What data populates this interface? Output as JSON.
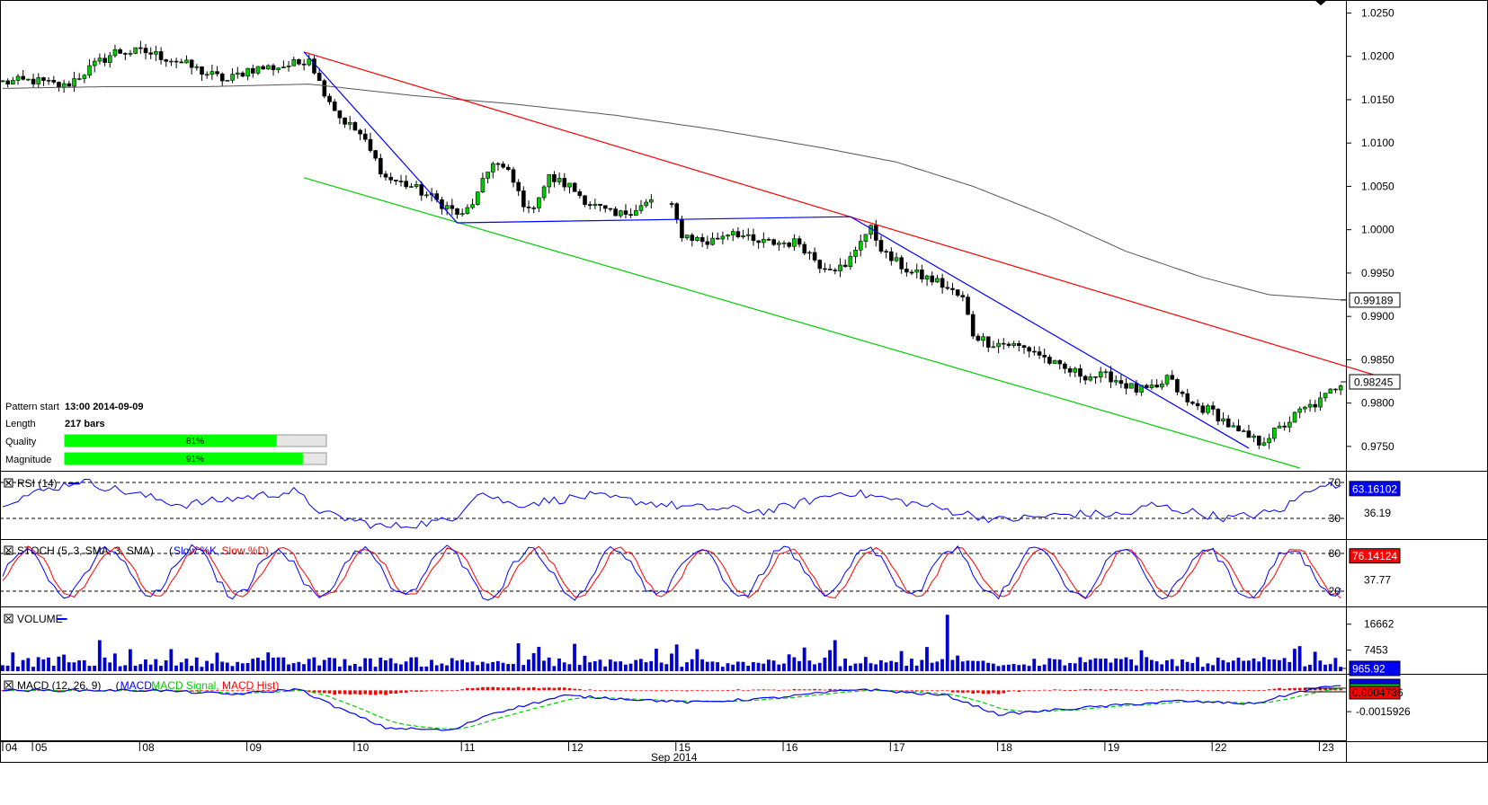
{
  "chart_data": {
    "type": "candlestick",
    "instrument_note": "",
    "x_ticks": [
      {
        "label": "04",
        "bar": 0
      },
      {
        "label": "05",
        "bar": 6
      },
      {
        "label": "08",
        "bar": 27
      },
      {
        "label": "09",
        "bar": 48
      },
      {
        "label": "10",
        "bar": 69
      },
      {
        "label": "11",
        "bar": 90
      },
      {
        "label": "12",
        "bar": 111
      },
      {
        "label": "15",
        "bar": 132
      },
      {
        "label": "16",
        "bar": 153
      },
      {
        "label": "17",
        "bar": 174
      },
      {
        "label": "18",
        "bar": 195
      },
      {
        "label": "19",
        "bar": 216
      },
      {
        "label": "22",
        "bar": 237
      },
      {
        "label": "23",
        "bar": 258
      }
    ],
    "x_label": "Sep 2014",
    "price_panel": {
      "y_ticks": [
        "1.0250",
        "1.0200",
        "1.0150",
        "1.0100",
        "1.0050",
        "1.0000",
        "0.9950",
        "0.9900",
        "0.9850",
        "0.9800",
        "0.9750"
      ],
      "ylim": [
        0.9725,
        1.0265
      ],
      "anchors": [
        [
          0,
          1.017
        ],
        [
          6,
          1.0172
        ],
        [
          12,
          1.0165
        ],
        [
          18,
          1.019
        ],
        [
          22,
          1.0205
        ],
        [
          28,
          1.0205
        ],
        [
          34,
          1.0195
        ],
        [
          40,
          1.018
        ],
        [
          44,
          1.0172
        ],
        [
          48,
          1.0185
        ],
        [
          54,
          1.0188
        ],
        [
          58,
          1.0192
        ],
        [
          60,
          1.02
        ],
        [
          62,
          1.017
        ],
        [
          66,
          1.013
        ],
        [
          70,
          1.011
        ],
        [
          75,
          1.006
        ],
        [
          80,
          1.005
        ],
        [
          86,
          1.003
        ],
        [
          90,
          1.0015
        ],
        [
          93,
          1.004
        ],
        [
          96,
          1.008
        ],
        [
          99,
          1.0065
        ],
        [
          103,
          1.002
        ],
        [
          107,
          1.006
        ],
        [
          111,
          1.005
        ],
        [
          115,
          1.003
        ],
        [
          120,
          1.0015
        ],
        [
          124,
          1.0025
        ],
        [
          128,
          1.0035
        ],
        [
          131,
          1.0025
        ],
        [
          133,
          0.9995
        ],
        [
          138,
          0.9985
        ],
        [
          143,
          1.0
        ],
        [
          147,
          0.9985
        ],
        [
          152,
          0.9985
        ],
        [
          156,
          0.9985
        ],
        [
          160,
          0.996
        ],
        [
          165,
          0.9955
        ],
        [
          168,
          0.999
        ],
        [
          170,
          1.0
        ],
        [
          173,
          0.997
        ],
        [
          178,
          0.995
        ],
        [
          183,
          0.994
        ],
        [
          188,
          0.992
        ],
        [
          190,
          0.988
        ],
        [
          193,
          0.987
        ],
        [
          197,
          0.9868
        ],
        [
          202,
          0.986
        ],
        [
          207,
          0.984
        ],
        [
          212,
          0.9832
        ],
        [
          217,
          0.983
        ],
        [
          222,
          0.9815
        ],
        [
          226,
          0.9815
        ],
        [
          228,
          0.983
        ],
        [
          232,
          0.98
        ],
        [
          237,
          0.979
        ],
        [
          242,
          0.9765
        ],
        [
          246,
          0.9755
        ],
        [
          250,
          0.977
        ],
        [
          254,
          0.979
        ],
        [
          258,
          0.9802
        ],
        [
          262,
          0.9824
        ]
      ],
      "sma_anchors": [
        [
          0,
          1.0163
        ],
        [
          20,
          1.0165
        ],
        [
          40,
          1.0165
        ],
        [
          60,
          1.0168
        ],
        [
          80,
          1.0155
        ],
        [
          100,
          1.0145
        ],
        [
          120,
          1.0132
        ],
        [
          140,
          1.0115
        ],
        [
          160,
          1.0095
        ],
        [
          175,
          1.0078
        ],
        [
          190,
          1.005
        ],
        [
          205,
          1.0015
        ],
        [
          220,
          0.9975
        ],
        [
          235,
          0.9945
        ],
        [
          248,
          0.9925
        ],
        [
          262,
          0.9919
        ]
      ],
      "lines": [
        {
          "name": "",
          "color": "#ff0000",
          "points": [
            [
              59,
              1.0205
            ],
            [
              270,
              0.983
            ]
          ]
        },
        {
          "name": "",
          "color": "#00cc00",
          "points": [
            [
              59,
              1.006
            ],
            [
              254,
              0.9725
            ]
          ]
        },
        {
          "name": "",
          "color": "#0000ff",
          "points": [
            [
              59,
              1.0205
            ],
            [
              89,
              1.0008
            ],
            [
              166,
              1.0015
            ],
            [
              244,
              0.9748
            ]
          ]
        }
      ],
      "tags": [
        {
          "value": "0.99189",
          "price": 0.99189
        },
        {
          "value": "0.98245",
          "price": 0.98245
        }
      ],
      "info_box": {
        "rows": [
          {
            "label": "Pattern start",
            "value": "13:00 2014-09-09"
          },
          {
            "label": "Length",
            "value": "217 bars"
          }
        ],
        "bars": [
          {
            "label": "Quality",
            "value": 81,
            "text": "81%"
          },
          {
            "label": "Magnitude",
            "value": 91,
            "text": "91%"
          }
        ]
      }
    },
    "rsi_panel": {
      "title": "RSI (14)",
      "y_ticks": [
        "70",
        "30"
      ],
      "value_tag": "63.16102",
      "side_label": "36.19",
      "ylim": [
        10,
        80
      ],
      "anchors": [
        [
          0,
          48
        ],
        [
          15,
          72
        ],
        [
          35,
          45
        ],
        [
          57,
          60
        ],
        [
          63,
          35
        ],
        [
          75,
          20
        ],
        [
          88,
          28
        ],
        [
          93,
          60
        ],
        [
          100,
          45
        ],
        [
          115,
          55
        ],
        [
          135,
          42
        ],
        [
          150,
          38
        ],
        [
          165,
          60
        ],
        [
          180,
          45
        ],
        [
          195,
          28
        ],
        [
          210,
          35
        ],
        [
          220,
          34
        ],
        [
          225,
          45
        ],
        [
          240,
          30
        ],
        [
          250,
          38
        ],
        [
          258,
          70
        ],
        [
          262,
          63
        ]
      ]
    },
    "stoch_panel": {
      "title": "STOCH (5, 3, SMA, 3, SMA)",
      "legend": [
        {
          "label": "Slow %K",
          "color": "#0000ff"
        },
        {
          "label": "Slow %D",
          "color": "#ff0000"
        }
      ],
      "y_ticks": [
        "80",
        "20"
      ],
      "value_tag": "76.14124",
      "side_label": "37.77",
      "ylim": [
        0,
        100
      ]
    },
    "volume_panel": {
      "title": "VOLUME",
      "y_ticks": [
        "16662",
        "7453"
      ],
      "value_tag": "965.92",
      "max": 22000
    },
    "macd_panel": {
      "title": "MACD (12, 26, 9)",
      "legend": [
        {
          "label": "MACD",
          "color": "#0000ff"
        },
        {
          "label": "MACD Signal",
          "color": "#00cc00"
        },
        {
          "label": "MACD Hist",
          "color": "#ff0000"
        }
      ],
      "y_ticks": [
        "-0.0015926"
      ],
      "value_tag": "0.0004736",
      "ylim": [
        -0.0036,
        0.0011
      ],
      "anchors": [
        [
          0,
          0.0
        ],
        [
          30,
          0.0
        ],
        [
          45,
          -0.0003
        ],
        [
          58,
          0.0001
        ],
        [
          65,
          -0.0012
        ],
        [
          75,
          -0.0028
        ],
        [
          88,
          -0.003
        ],
        [
          95,
          -0.0018
        ],
        [
          110,
          -0.0004
        ],
        [
          135,
          -0.0009
        ],
        [
          150,
          -0.0006
        ],
        [
          168,
          0.0001
        ],
        [
          185,
          -0.0004
        ],
        [
          195,
          -0.0018
        ],
        [
          215,
          -0.0012
        ],
        [
          230,
          -0.0008
        ],
        [
          245,
          -0.001
        ],
        [
          255,
          0.0
        ],
        [
          262,
          0.0004
        ]
      ]
    },
    "n_bars": 263
  }
}
